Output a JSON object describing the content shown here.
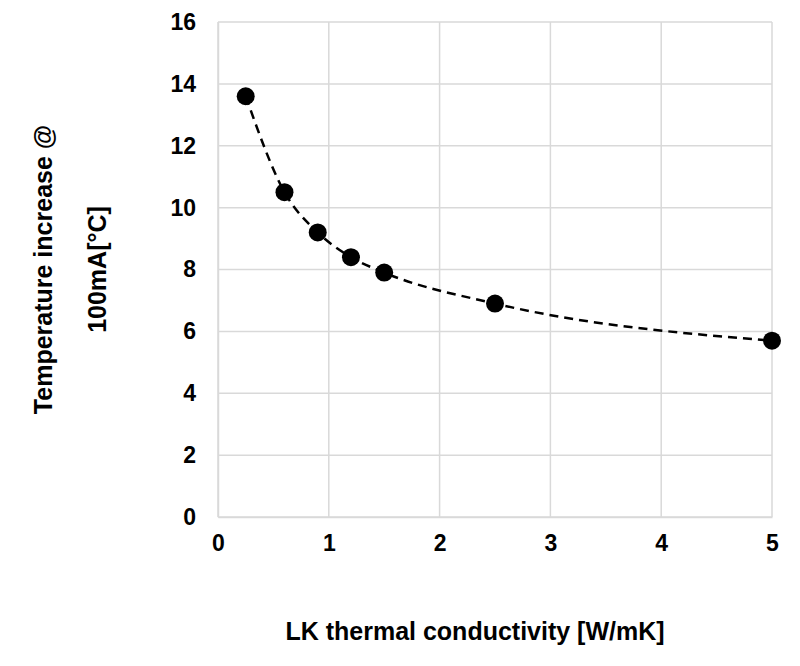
{
  "chart_data": {
    "type": "line",
    "x_label": "LK thermal conductivity [W/mK]",
    "y_label": [
      "Temperature increase @",
      "100mA[°C]"
    ],
    "x": [
      0.25,
      0.6,
      0.9,
      1.2,
      1.5,
      2.5,
      5
    ],
    "values": [
      13.6,
      10.5,
      9.2,
      8.4,
      7.9,
      6.9,
      5.7
    ],
    "color": "#000000",
    "marker": "circle",
    "line_style": "dashed",
    "xlim": [
      0,
      5
    ],
    "xticks": [
      0,
      1,
      2,
      3,
      4,
      5
    ],
    "ylim": [
      0,
      16
    ],
    "yticks": [
      0,
      2,
      4,
      6,
      8,
      10,
      12,
      14,
      16
    ],
    "grid": true
  }
}
